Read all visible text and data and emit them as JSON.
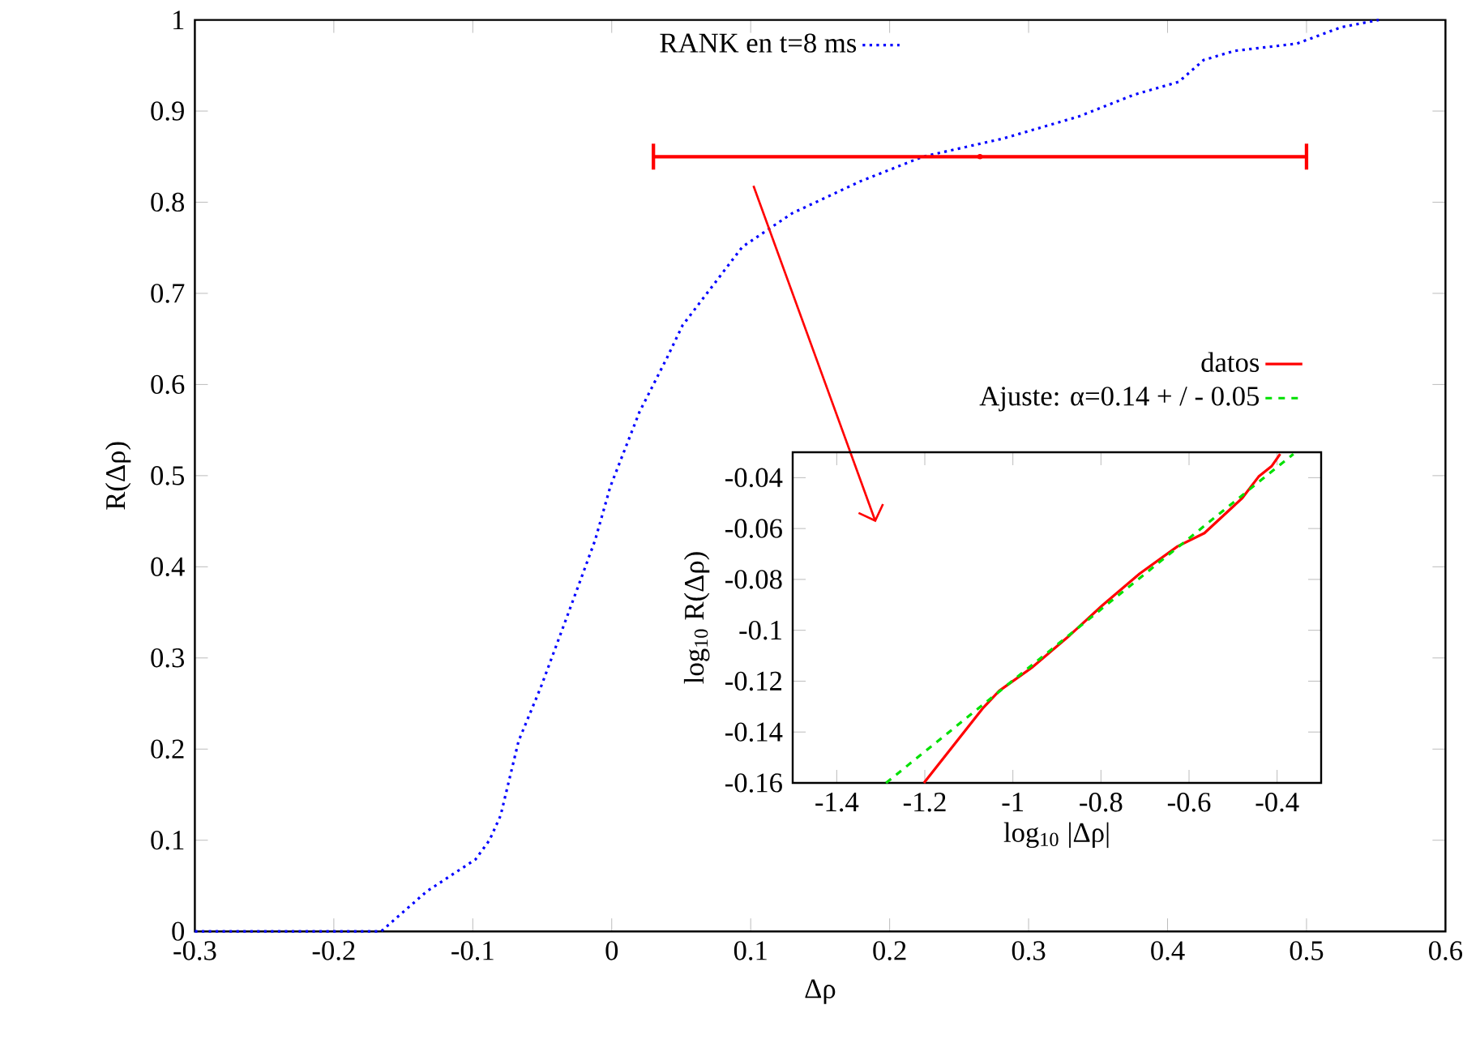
{
  "chart_data": [
    {
      "type": "line",
      "xlabel": "Δρ",
      "ylabel": "R(Δρ)",
      "xlim": [
        -0.3,
        0.6
      ],
      "ylim": [
        0,
        1
      ],
      "xticks": [
        -0.3,
        -0.2,
        -0.1,
        0,
        0.1,
        0.2,
        0.3,
        0.4,
        0.5,
        0.6
      ],
      "yticks": [
        0,
        0.1,
        0.2,
        0.3,
        0.4,
        0.5,
        0.6,
        0.7,
        0.8,
        0.9,
        1
      ],
      "legend": "top",
      "series": [
        {
          "name": "RANK en t=8 ms",
          "color": "#0000ff",
          "line_style": "dotted",
          "x": [
            -0.3,
            -0.166,
            -0.133,
            -0.098,
            -0.088,
            -0.08,
            -0.067,
            -0.051,
            -0.032,
            -0.012,
            -0.001,
            0.02,
            0.04,
            0.051,
            0.094,
            0.13,
            0.179,
            0.224,
            0.282,
            0.336,
            0.376,
            0.408,
            0.426,
            0.448,
            0.493,
            0.525,
            0.552
          ],
          "values": [
            0,
            0,
            0.044,
            0.079,
            0.1,
            0.127,
            0.209,
            0.268,
            0.346,
            0.429,
            0.488,
            0.57,
            0.63,
            0.665,
            0.751,
            0.788,
            0.823,
            0.85,
            0.87,
            0.894,
            0.918,
            0.932,
            0.956,
            0.966,
            0.974,
            0.992,
            1
          ]
        },
        {
          "type": "scatter",
          "color": "#ff0000",
          "marker": "circle",
          "x": [
            0.265
          ],
          "values": [
            0.85
          ],
          "xerrors": [
            [
              0.03,
              0.5
            ]
          ]
        }
      ]
    },
    {
      "type": "line",
      "xlabel": "log$_{10}$ |Δρ|",
      "ylabel": "log$_{10}$ R(Δρ)",
      "xlim": [
        -1.5,
        -0.3
      ],
      "ylim": [
        -0.16,
        -0.03
      ],
      "xticks": [
        -1.4,
        -1.2,
        -1,
        -0.8,
        -0.6,
        -0.4
      ],
      "yticks": [
        -0.16,
        -0.14,
        -0.12,
        -0.1,
        -0.08,
        -0.06,
        -0.04
      ],
      "legend": "top right",
      "series": [
        {
          "name": "datos",
          "color": "#ff0000",
          "line_style": "solid",
          "x": [
            -1.202,
            -1.067,
            -1.031,
            -0.957,
            -0.871,
            -0.798,
            -0.712,
            -0.626,
            -0.565,
            -0.479,
            -0.442,
            -0.412,
            -0.393
          ],
          "values": [
            -0.16,
            -0.1304,
            -0.1238,
            -0.1147,
            -0.102,
            -0.0904,
            -0.0777,
            -0.067,
            -0.0618,
            -0.048,
            -0.0396,
            -0.0354,
            -0.0307
          ]
        },
        {
          "name": "Ajuste: α=0.14 + / - 0.05",
          "color": "#00e000",
          "line_style": "dashed",
          "x": [
            -1.288,
            -0.363
          ],
          "values": [
            -0.16,
            -0.0307
          ]
        }
      ]
    }
  ]
}
